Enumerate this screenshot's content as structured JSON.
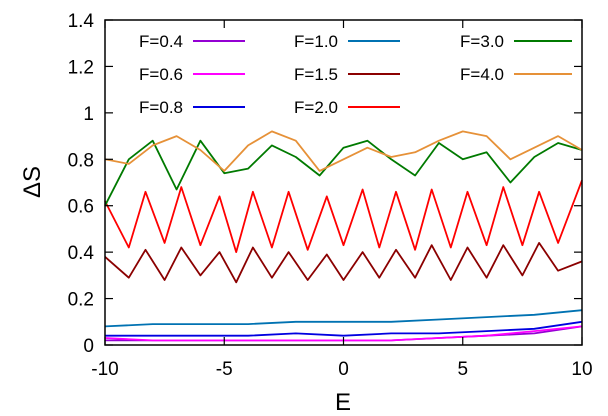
{
  "chart_data": {
    "type": "line",
    "xlabel": "E",
    "ylabel": "ΔS",
    "xlim": [
      -10,
      10
    ],
    "ylim": [
      0,
      1.4
    ],
    "xticks": [
      "-10",
      "-5",
      "0",
      "5",
      "10"
    ],
    "yticks": [
      "0",
      "0.2",
      "0.4",
      "0.6",
      "0.8",
      "1",
      "1.2",
      "1.4"
    ],
    "grid": false,
    "legend_position": "top",
    "series": [
      {
        "name": "F=0.4",
        "color": "#9400d3",
        "x": [
          -10,
          -8,
          -6,
          -4,
          -2,
          0,
          2,
          4,
          6,
          8,
          10
        ],
        "values": [
          0.02,
          0.02,
          0.02,
          0.02,
          0.02,
          0.02,
          0.02,
          0.03,
          0.04,
          0.05,
          0.08
        ]
      },
      {
        "name": "F=0.6",
        "color": "#ff00ff",
        "x": [
          -10,
          -8,
          -6,
          -4,
          -2,
          0,
          2,
          4,
          6,
          8,
          10
        ],
        "values": [
          0.03,
          0.02,
          0.02,
          0.02,
          0.02,
          0.02,
          0.02,
          0.03,
          0.04,
          0.06,
          0.08
        ]
      },
      {
        "name": "F=0.8",
        "color": "#0000e0",
        "x": [
          -10,
          -8,
          -6,
          -4,
          -2,
          0,
          2,
          4,
          6,
          8,
          10
        ],
        "values": [
          0.04,
          0.04,
          0.04,
          0.04,
          0.05,
          0.04,
          0.05,
          0.05,
          0.06,
          0.07,
          0.1
        ]
      },
      {
        "name": "F=1.0",
        "color": "#0072b2",
        "x": [
          -10,
          -8,
          -6,
          -4,
          -2,
          0,
          2,
          4,
          6,
          8,
          10
        ],
        "values": [
          0.08,
          0.09,
          0.09,
          0.09,
          0.1,
          0.1,
          0.1,
          0.11,
          0.12,
          0.13,
          0.15
        ]
      },
      {
        "name": "F=1.5",
        "color": "#8b0000",
        "x": [
          -10,
          -9,
          -8.3,
          -7.5,
          -6.8,
          -6,
          -5.2,
          -4.5,
          -3.8,
          -3,
          -2.3,
          -1.5,
          -0.7,
          0,
          0.8,
          1.5,
          2.2,
          3,
          3.7,
          4.5,
          5.2,
          6,
          6.7,
          7.5,
          8.2,
          9,
          10
        ],
        "values": [
          0.38,
          0.29,
          0.41,
          0.28,
          0.42,
          0.3,
          0.4,
          0.27,
          0.42,
          0.29,
          0.4,
          0.28,
          0.39,
          0.28,
          0.4,
          0.29,
          0.41,
          0.29,
          0.43,
          0.28,
          0.42,
          0.29,
          0.43,
          0.3,
          0.44,
          0.32,
          0.36
        ]
      },
      {
        "name": "F=2.0",
        "color": "#ff0000",
        "x": [
          -10,
          -9,
          -8.3,
          -7.5,
          -6.8,
          -6,
          -5.2,
          -4.5,
          -3.8,
          -3,
          -2.3,
          -1.5,
          -0.7,
          0,
          0.8,
          1.5,
          2.2,
          3,
          3.7,
          4.5,
          5.2,
          6,
          6.7,
          7.5,
          8.2,
          9,
          10
        ],
        "values": [
          0.62,
          0.42,
          0.66,
          0.44,
          0.68,
          0.43,
          0.64,
          0.4,
          0.66,
          0.42,
          0.66,
          0.41,
          0.64,
          0.43,
          0.67,
          0.42,
          0.66,
          0.41,
          0.67,
          0.42,
          0.66,
          0.43,
          0.68,
          0.43,
          0.66,
          0.44,
          0.71
        ]
      },
      {
        "name": "F=3.0",
        "color": "#007a00",
        "x": [
          -10,
          -9,
          -8,
          -7,
          -6,
          -5,
          -4,
          -3,
          -2,
          -1,
          0,
          1,
          2,
          3,
          4,
          5,
          6,
          7,
          8,
          9,
          10
        ],
        "values": [
          0.6,
          0.8,
          0.88,
          0.67,
          0.88,
          0.74,
          0.76,
          0.86,
          0.81,
          0.73,
          0.85,
          0.88,
          0.8,
          0.73,
          0.87,
          0.8,
          0.83,
          0.7,
          0.81,
          0.87,
          0.84
        ]
      },
      {
        "name": "F=4.0",
        "color": "#e69138",
        "x": [
          -10,
          -9,
          -8,
          -7,
          -6,
          -5,
          -4,
          -3,
          -2,
          -1,
          0,
          1,
          2,
          3,
          4,
          5,
          6,
          7,
          8,
          9,
          10
        ],
        "values": [
          0.8,
          0.78,
          0.86,
          0.9,
          0.84,
          0.75,
          0.86,
          0.92,
          0.88,
          0.75,
          0.8,
          0.85,
          0.81,
          0.83,
          0.88,
          0.92,
          0.9,
          0.8,
          0.85,
          0.9,
          0.84
        ]
      }
    ]
  }
}
